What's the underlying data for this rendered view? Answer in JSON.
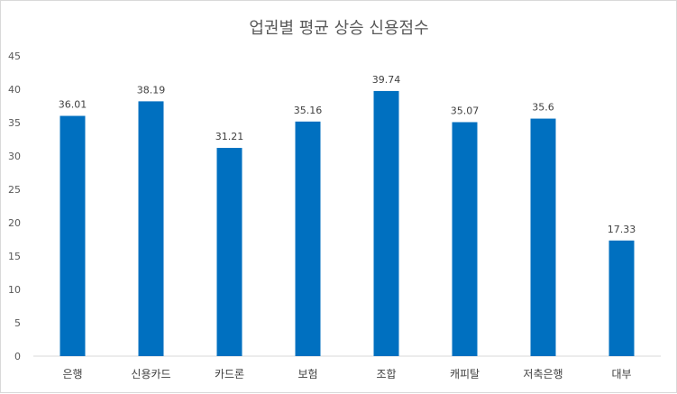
{
  "chart_data": {
    "type": "bar",
    "title": "업권별 평균 상승 신용점수",
    "xlabel": "",
    "ylabel": "",
    "categories": [
      "은행",
      "신용카드",
      "카드론",
      "보험",
      "조합",
      "캐피탈",
      "저축은행",
      "대부"
    ],
    "values": [
      36.01,
      38.19,
      31.21,
      35.16,
      39.74,
      35.07,
      35.6,
      17.33
    ],
    "data_labels": [
      "36.01",
      "38.19",
      "31.21",
      "35.16",
      "39.74",
      "35.07",
      "35.6",
      "17.33"
    ],
    "ylim": [
      0,
      45
    ],
    "yticks": [
      0,
      5,
      10,
      15,
      20,
      25,
      30,
      35,
      40,
      45
    ],
    "grid": false,
    "legend": "none",
    "bar_color": "#0070C0"
  }
}
